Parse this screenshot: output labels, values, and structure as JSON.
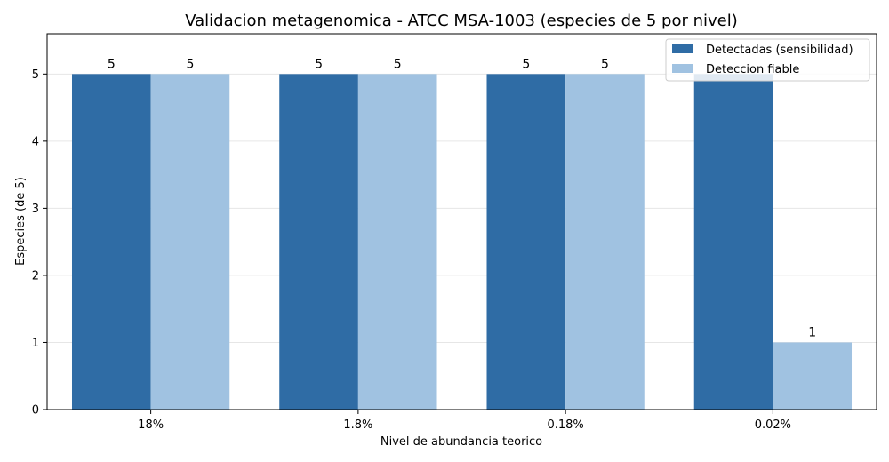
{
  "chart_data": {
    "type": "bar",
    "title": "Validacion metagenomica - ATCC MSA-1003 (especies de 5 por nivel)",
    "xlabel": "Nivel de abundancia teorico",
    "ylabel": "Especies (de 5)",
    "categories": [
      "18%",
      "1.8%",
      "0.18%",
      "0.02%"
    ],
    "series": [
      {
        "name": "Detectadas (sensibilidad)",
        "values": [
          5,
          5,
          5,
          5
        ],
        "color": "#2f6ca5"
      },
      {
        "name": "Deteccion fiable",
        "values": [
          5,
          5,
          5,
          1
        ],
        "color": "#a0c2e1"
      }
    ],
    "data_labels": [
      [
        "5",
        "5",
        "5",
        ""
      ],
      [
        "5",
        "5",
        "5",
        "1"
      ]
    ],
    "ylim": [
      0,
      5.6
    ],
    "yticks": [
      "0",
      "1",
      "2",
      "3",
      "4",
      "5"
    ],
    "grid": "y",
    "legend_position": "top-right"
  }
}
